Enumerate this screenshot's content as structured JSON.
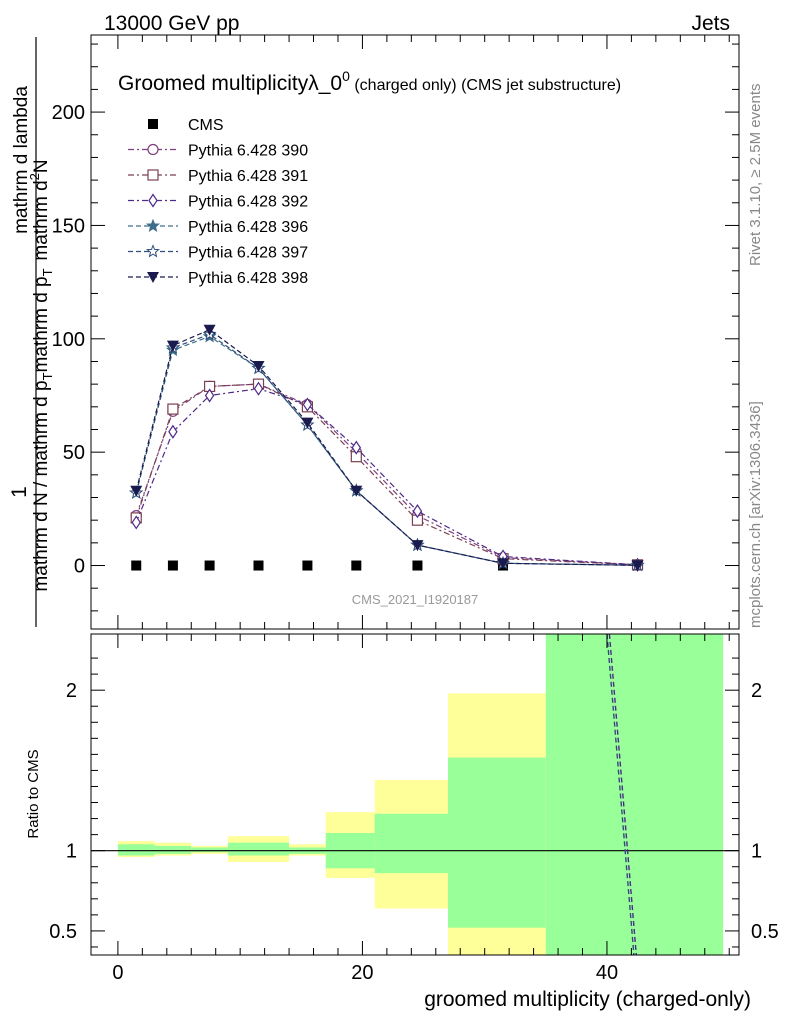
{
  "header": {
    "left": "13000 GeV pp",
    "right": "Jets"
  },
  "side_text": {
    "top": "Rivet 3.1.10, ≥ 2.5M events",
    "bottom": "mcplots.cern.ch [arXiv:1306.3436]"
  },
  "chart_data": [
    {
      "type": "line",
      "title": "Groomed multiplicityλ_0",
      "title_sup": "0",
      "title_suffix": "(charged only) (CMS jet substructure)",
      "ylabel": {
        "prefix": "1",
        "denominator": "mathrm d N / mathrm d p",
        "sub": "T",
        "middle": "mathrm d p",
        "sub2": "T",
        "numerator": "mathrm d",
        "sup": "2",
        "numerator_rest": "N",
        "tail": "mathrm d lambda"
      },
      "ylabel_text": "1 / (mathrm d N / mathrm d p_T) · mathrm d²N / (mathrm d p_T mathrm d lambda)",
      "xlim": [
        -2.2,
        50.8
      ],
      "ylim": [
        -28,
        234
      ],
      "yticks": [
        0,
        50,
        100,
        150,
        200
      ],
      "watermark": "CMS_2021_I1920187",
      "legend_placement": "top-left",
      "x": [
        1.5,
        4.5,
        7.5,
        11.5,
        15.5,
        19.5,
        24.5,
        31.5,
        42.5
      ],
      "series": [
        {
          "name": "CMS",
          "color": "#000000",
          "marker": "square-filled",
          "values": [
            0,
            0,
            0,
            0,
            0,
            0,
            0,
            0,
            0
          ]
        },
        {
          "name": "Pythia 6.428 390",
          "color": "#7e3f7e",
          "marker": "circle-open",
          "dash": "dashdot",
          "values": [
            22,
            68,
            79,
            80,
            71,
            50,
            22,
            3.5,
            0.3
          ]
        },
        {
          "name": "Pythia 6.428 391",
          "color": "#7a4050",
          "marker": "square-open",
          "dash": "dashdot",
          "values": [
            21,
            69,
            79,
            80,
            70,
            48,
            20,
            3.0,
            0.3
          ]
        },
        {
          "name": "Pythia 6.428 392",
          "color": "#4e2a8a",
          "marker": "diamond-open",
          "dash": "dashdot",
          "values": [
            19,
            59,
            75,
            78,
            71,
            52,
            24,
            4.0,
            0.3
          ]
        },
        {
          "name": "Pythia 6.428 396",
          "color": "#3e6e8a",
          "marker": "star-filled",
          "dash": "dashed",
          "values": [
            32,
            95,
            101,
            87,
            62,
            33,
            9,
            1.0,
            0.1
          ]
        },
        {
          "name": "Pythia 6.428 397",
          "color": "#2e4e7a",
          "marker": "star-open",
          "dash": "dashed",
          "values": [
            32,
            96,
            102,
            87,
            62,
            33,
            9,
            1.0,
            0.1
          ]
        },
        {
          "name": "Pythia 6.428 398",
          "color": "#1a1a4e",
          "marker": "triangle-down-filled",
          "dash": "dashed",
          "values": [
            33,
            97,
            104,
            88,
            63,
            33,
            9,
            1.0,
            0.1
          ]
        }
      ]
    },
    {
      "type": "area",
      "title": "",
      "xlabel": "groomed multiplicity (charged-only)",
      "ylabel": "Ratio to CMS",
      "xlim": [
        -2.2,
        50.8
      ],
      "ylim": [
        0.35,
        2.35
      ],
      "xticks": [
        0,
        20,
        40
      ],
      "yticks": [
        0.5,
        1,
        2
      ],
      "ref_line": 1,
      "band_colors": {
        "outer": "#ffff99",
        "inner": "#99ff99"
      },
      "bins": [
        {
          "lo": 0,
          "hi": 3,
          "outer": [
            0.96,
            1.06
          ],
          "inner": [
            0.97,
            1.04
          ]
        },
        {
          "lo": 3,
          "hi": 6,
          "outer": [
            0.97,
            1.05
          ],
          "inner": [
            0.98,
            1.03
          ]
        },
        {
          "lo": 6,
          "hi": 9,
          "outer": [
            0.98,
            1.03
          ],
          "inner": [
            0.99,
            1.02
          ]
        },
        {
          "lo": 9,
          "hi": 14,
          "outer": [
            0.93,
            1.09
          ],
          "inner": [
            0.97,
            1.05
          ]
        },
        {
          "lo": 14,
          "hi": 17,
          "outer": [
            0.97,
            1.04
          ],
          "inner": [
            0.98,
            1.02
          ]
        },
        {
          "lo": 17,
          "hi": 21,
          "outer": [
            0.83,
            1.24
          ],
          "inner": [
            0.89,
            1.11
          ]
        },
        {
          "lo": 21,
          "hi": 27,
          "outer": [
            0.64,
            1.44
          ],
          "inner": [
            0.86,
            1.23
          ]
        },
        {
          "lo": 27,
          "hi": 35,
          "outer": [
            0.35,
            1.98
          ],
          "inner": [
            0.52,
            1.58
          ]
        },
        {
          "lo": 35,
          "hi": 49.5,
          "outer": [
            0.35,
            2.35
          ],
          "inner": [
            0.35,
            2.35
          ]
        }
      ],
      "ratio_lines": [
        {
          "color": "#2e4e7a",
          "dash": "dashed",
          "points": [
            [
              40.0,
              2.35
            ],
            [
              42.2,
              0.35
            ]
          ]
        },
        {
          "color": "#4e2a8a",
          "dash": "dashed",
          "points": [
            [
              40.2,
              2.35
            ],
            [
              42.4,
              0.35
            ]
          ]
        }
      ]
    }
  ]
}
